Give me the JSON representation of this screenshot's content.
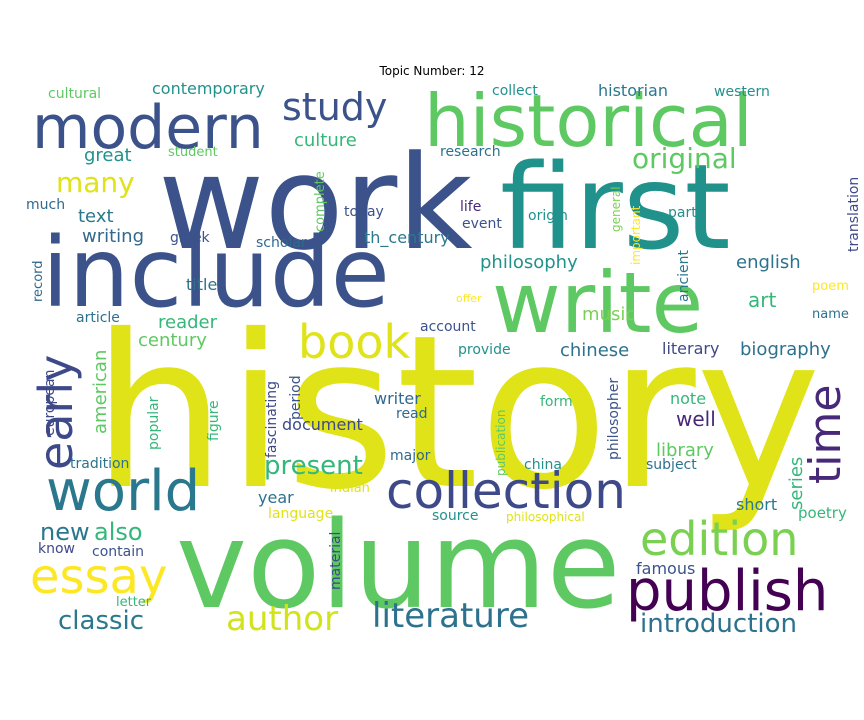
{
  "title": "Topic Number: 12",
  "words": [
    {
      "text": "history",
      "color": "#dfe318"
    },
    {
      "text": "volume",
      "color": "#5ec962"
    },
    {
      "text": "work",
      "color": "#3b528b"
    },
    {
      "text": "first",
      "color": "#21918c"
    },
    {
      "text": "include",
      "color": "#3b528b"
    },
    {
      "text": "write",
      "color": "#5ec962"
    },
    {
      "text": "historical",
      "color": "#5ec962"
    },
    {
      "text": "modern",
      "color": "#3b528b"
    },
    {
      "text": "collection",
      "color": "#3e4989"
    },
    {
      "text": "world",
      "color": "#2a788e"
    },
    {
      "text": "publish",
      "color": "#440154"
    },
    {
      "text": "edition",
      "color": "#7ad151"
    },
    {
      "text": "essay",
      "color": "#fde725"
    },
    {
      "text": "time",
      "color": "#482878"
    },
    {
      "text": "book",
      "color": "#dfe318"
    },
    {
      "text": "early",
      "color": "#3e4989"
    },
    {
      "text": "study",
      "color": "#3b528b"
    },
    {
      "text": "literature",
      "color": "#2c728e"
    },
    {
      "text": "author",
      "color": "#d2e21b"
    },
    {
      "text": "introduction",
      "color": "#2c728e"
    },
    {
      "text": "original",
      "color": "#5ec962"
    },
    {
      "text": "many",
      "color": "#dfe318"
    },
    {
      "text": "classic",
      "color": "#2a788e"
    },
    {
      "text": "present",
      "color": "#35b779"
    },
    {
      "text": "also",
      "color": "#35b779"
    },
    {
      "text": "new",
      "color": "#2a788e"
    },
    {
      "text": "collect",
      "color": "#21918c"
    },
    {
      "text": "historian",
      "color": "#2a788e"
    },
    {
      "text": "western",
      "color": "#21918c"
    },
    {
      "text": "cultural",
      "color": "#5ec962"
    },
    {
      "text": "contemporary",
      "color": "#21918c"
    },
    {
      "text": "culture",
      "color": "#35b779"
    },
    {
      "text": "great",
      "color": "#21918c"
    },
    {
      "text": "student",
      "color": "#5ec962"
    },
    {
      "text": "research",
      "color": "#2c728e"
    },
    {
      "text": "much",
      "color": "#31688e"
    },
    {
      "text": "text",
      "color": "#2a788e"
    },
    {
      "text": "writing",
      "color": "#31688e"
    },
    {
      "text": "greek",
      "color": "#3b528b"
    },
    {
      "text": "scholar",
      "color": "#31688e"
    },
    {
      "text": "th_century",
      "color": "#2a788e"
    },
    {
      "text": "today",
      "color": "#3b528b"
    },
    {
      "text": "life",
      "color": "#482878"
    },
    {
      "text": "event",
      "color": "#3b528b"
    },
    {
      "text": "origin",
      "color": "#21918c"
    },
    {
      "text": "part",
      "color": "#21918c"
    },
    {
      "text": "complete",
      "color": "#5ec962"
    },
    {
      "text": "general",
      "color": "#7ad151"
    },
    {
      "text": "important",
      "color": "#fde725"
    },
    {
      "text": "translation",
      "color": "#3e4989"
    },
    {
      "text": "philosophy",
      "color": "#21918c"
    },
    {
      "text": "english",
      "color": "#2c728e"
    },
    {
      "text": "ancient",
      "color": "#2a788e"
    },
    {
      "text": "art",
      "color": "#35b779"
    },
    {
      "text": "poem",
      "color": "#fde725"
    },
    {
      "text": "name",
      "color": "#2c728e"
    },
    {
      "text": "title",
      "color": "#2c728e"
    },
    {
      "text": "record",
      "color": "#31688e"
    },
    {
      "text": "offer",
      "color": "#fde725"
    },
    {
      "text": "article",
      "color": "#2c728e"
    },
    {
      "text": "reader",
      "color": "#35b779"
    },
    {
      "text": "century",
      "color": "#5ec962"
    },
    {
      "text": "music",
      "color": "#7ad151"
    },
    {
      "text": "account",
      "color": "#3b528b"
    },
    {
      "text": "provide",
      "color": "#21918c"
    },
    {
      "text": "chinese",
      "color": "#2c728e"
    },
    {
      "text": "literary",
      "color": "#3e4989"
    },
    {
      "text": "biography",
      "color": "#2c728e"
    },
    {
      "text": "american",
      "color": "#5ec962"
    },
    {
      "text": "european",
      "color": "#3e4989"
    },
    {
      "text": "popular",
      "color": "#35b779"
    },
    {
      "text": "fascinating",
      "color": "#3e4989"
    },
    {
      "text": "figure",
      "color": "#35b779"
    },
    {
      "text": "period",
      "color": "#3b528b"
    },
    {
      "text": "writer",
      "color": "#31688e"
    },
    {
      "text": "read",
      "color": "#31688e"
    },
    {
      "text": "document",
      "color": "#3e4989"
    },
    {
      "text": "philosopher",
      "color": "#3b528b"
    },
    {
      "text": "publication",
      "color": "#5ec962"
    },
    {
      "text": "form",
      "color": "#35b779"
    },
    {
      "text": "note",
      "color": "#35b779"
    },
    {
      "text": "well",
      "color": "#482878"
    },
    {
      "text": "library",
      "color": "#5ec962"
    },
    {
      "text": "series",
      "color": "#35b779"
    },
    {
      "text": "tradition",
      "color": "#2c728e"
    },
    {
      "text": "major",
      "color": "#31688e"
    },
    {
      "text": "china",
      "color": "#21918c"
    },
    {
      "text": "subject",
      "color": "#2c728e"
    },
    {
      "text": "year",
      "color": "#2c728e"
    },
    {
      "text": "indian",
      "color": "#dfe318"
    },
    {
      "text": "language",
      "color": "#dfe318"
    },
    {
      "text": "source",
      "color": "#21918c"
    },
    {
      "text": "philosophical",
      "color": "#dfe318"
    },
    {
      "text": "short",
      "color": "#2a788e"
    },
    {
      "text": "poetry",
      "color": "#35b779"
    },
    {
      "text": "know",
      "color": "#3e4989"
    },
    {
      "text": "contain",
      "color": "#3b528b"
    },
    {
      "text": "material",
      "color": "#3e4989"
    },
    {
      "text": "famous",
      "color": "#3b528b"
    },
    {
      "text": "letter",
      "color": "#35b779"
    }
  ]
}
